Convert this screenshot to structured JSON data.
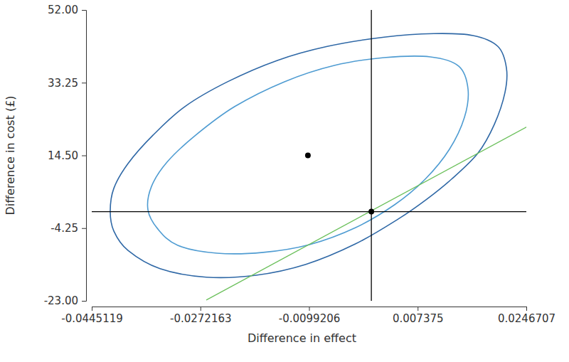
{
  "chart_data": {
    "type": "scatter",
    "x_label": "Difference in effect",
    "y_label": "Difference in cost (£)",
    "xlim": [
      -0.0445119,
      0.0246707
    ],
    "ylim": [
      -23,
      52
    ],
    "xticks": [
      -0.0445119,
      -0.0272163,
      -0.0099206,
      0.007375,
      0.0246707
    ],
    "yticks": [
      {
        "value": -23,
        "label": "-23.00"
      },
      {
        "value": -4.25,
        "label": "-4.25"
      },
      {
        "value": 14.5,
        "label": "14.50"
      },
      {
        "value": 33.25,
        "label": "33.25"
      },
      {
        "value": 52,
        "label": "52.00"
      }
    ],
    "grid": false,
    "series": [
      {
        "type": "ellipse",
        "color": "#2f68a6",
        "line_style": "solid",
        "x": [
          -0.04157,
          -0.041,
          -0.03874,
          -0.03477,
          -0.02968,
          -0.02288,
          -0.01496,
          -0.00703,
          0.00203,
          0.00995,
          0.01618,
          0.02014,
          0.0215,
          0.02127,
          0.01958,
          0.01697,
          0.01278,
          0.00882,
          0.00429,
          -0.0025,
          -0.01043,
          -0.01836,
          -0.02628,
          -0.03364,
          -0.03874,
          -0.041
        ],
        "values": [
          0.1,
          6.0,
          12.4,
          19.7,
          27.1,
          33.5,
          39.0,
          42.6,
          45.0,
          45.9,
          45.4,
          42.6,
          37.1,
          30.7,
          22.5,
          15.1,
          8.4,
          3.2,
          -1.9,
          -8.3,
          -13.6,
          -16.4,
          -16.9,
          -14.7,
          -10.0,
          -5.0
        ]
      },
      {
        "type": "ellipse",
        "color": "#4f9cd2",
        "line_style": "solid",
        "x": [
          -0.03557,
          -0.035,
          -0.03251,
          -0.02798,
          -0.02175,
          -0.01383,
          -0.0059,
          0.00203,
          0.00939,
          0.01392,
          0.01539,
          0.01482,
          0.01244,
          0.00859,
          0.00372,
          -0.0025,
          -0.00986,
          -0.01722,
          -0.02458,
          -0.03081,
          -0.03398
        ],
        "values": [
          0.5,
          6.5,
          12.8,
          19.7,
          27.1,
          33.5,
          37.7,
          39.7,
          39.9,
          37.5,
          31.6,
          24.3,
          16.1,
          8.4,
          1.8,
          -4.1,
          -8.5,
          -10.5,
          -10.7,
          -8.7,
          -4.5
        ]
      },
      {
        "type": "line",
        "color": "#6cc05c",
        "line_style": "solid",
        "x": [
          -0.02628,
          0.02479
        ],
        "values": [
          -22.8,
          21.9
        ]
      },
      {
        "type": "line",
        "color": "#000000",
        "line_style": "solid",
        "x": [
          0,
          0
        ],
        "values": [
          -23,
          52
        ]
      },
      {
        "type": "line",
        "color": "#000000",
        "line_style": "solid",
        "x": [
          -0.0445119,
          0.0246707
        ],
        "values": [
          0,
          0
        ]
      },
      {
        "type": "scatter",
        "color": "#000000",
        "marker": "circle",
        "x": [
          -0.0101
        ],
        "values": [
          14.5
        ]
      },
      {
        "type": "scatter",
        "color": "#000000",
        "marker": "circle",
        "x": [
          0
        ],
        "values": [
          0
        ]
      }
    ]
  }
}
